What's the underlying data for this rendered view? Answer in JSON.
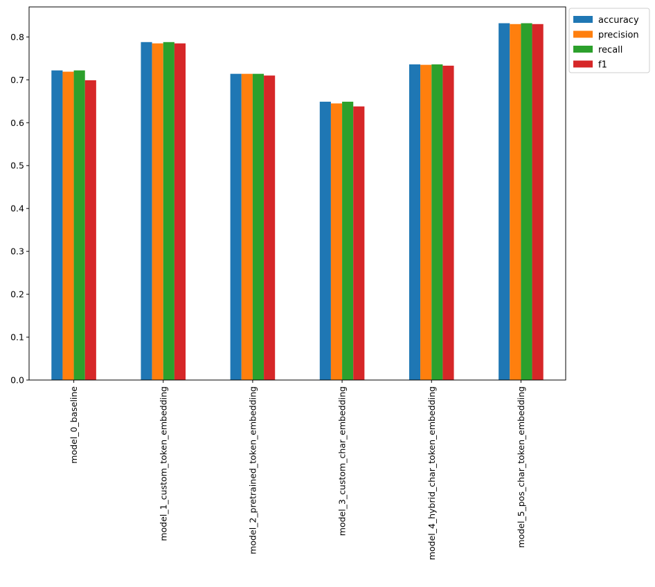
{
  "chart_data": {
    "type": "bar",
    "title": "",
    "xlabel": "",
    "ylabel": "",
    "ylim": [
      0,
      0.87
    ],
    "yticks": [
      "0.0",
      "0.1",
      "0.2",
      "0.3",
      "0.4",
      "0.5",
      "0.6",
      "0.7",
      "0.8"
    ],
    "categories": [
      "model_0_baseline",
      "model_1_custom_token_embedding",
      "model_2_pretrained_token_embedding",
      "model_3_custom_char_embedding",
      "model_4_hybrid_char_token_embedding",
      "model_5_pos_char_token_embedding"
    ],
    "series": [
      {
        "name": "accuracy",
        "color": "#1f77b4",
        "values": [
          0.722,
          0.788,
          0.714,
          0.649,
          0.736,
          0.832
        ]
      },
      {
        "name": "precision",
        "color": "#ff7f0e",
        "values": [
          0.719,
          0.785,
          0.714,
          0.645,
          0.735,
          0.83
        ]
      },
      {
        "name": "recall",
        "color": "#2ca02c",
        "values": [
          0.722,
          0.788,
          0.714,
          0.649,
          0.736,
          0.832
        ]
      },
      {
        "name": "f1",
        "color": "#d62728",
        "values": [
          0.699,
          0.785,
          0.71,
          0.638,
          0.733,
          0.83
        ]
      }
    ],
    "legend": {
      "position": "outside-top-right"
    },
    "grid": false
  }
}
